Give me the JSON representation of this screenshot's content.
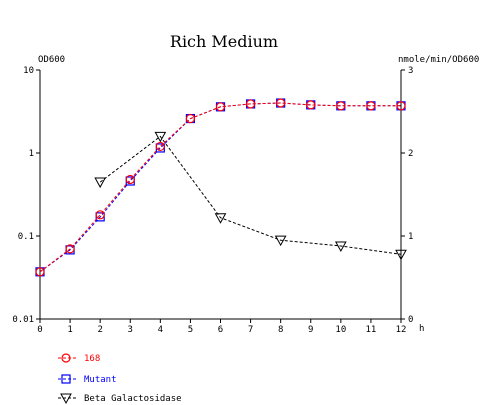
{
  "chart_data": {
    "type": "line",
    "title": "Rich Medium",
    "left_axis_label": "OD600",
    "right_axis_label": "nmole/min/OD600",
    "x_unit": "h",
    "x": [
      0,
      1,
      2,
      3,
      4,
      5,
      6,
      7,
      8,
      9,
      10,
      11,
      12
    ],
    "x_ticks": [
      "0",
      "1",
      "2",
      "3",
      "4",
      "5",
      "6",
      "7",
      "8",
      "9",
      "10",
      "11",
      "12"
    ],
    "xlim": [
      0,
      12
    ],
    "left_scale": "log",
    "left_ylim": [
      0.01,
      10
    ],
    "left_ticks": [
      "0.01",
      "0.1",
      "1",
      "10"
    ],
    "right_ylim": [
      0,
      3
    ],
    "right_ticks": [
      "0",
      "1",
      "2",
      "3"
    ],
    "series": [
      {
        "name": "168",
        "axis": "left",
        "color": "#ff0000",
        "marker": "circle",
        "x": [
          0,
          1,
          2,
          3,
          4,
          5,
          6,
          7,
          8,
          9,
          10,
          11,
          12
        ],
        "values": [
          0.037,
          0.07,
          0.18,
          0.48,
          1.2,
          2.6,
          3.6,
          3.9,
          4.0,
          3.8,
          3.7,
          3.7,
          3.7
        ]
      },
      {
        "name": "Mutant",
        "axis": "left",
        "color": "#0000ff",
        "marker": "square",
        "x": [
          0,
          1,
          2,
          3,
          4,
          5,
          6,
          7,
          8,
          9,
          10,
          11,
          12
        ],
        "values": [
          0.037,
          0.068,
          0.17,
          0.46,
          1.15,
          2.6,
          3.6,
          3.9,
          4.0,
          3.8,
          3.7,
          3.7,
          3.7
        ]
      },
      {
        "name": "Beta Galactosidase",
        "axis": "right",
        "color": "#000000",
        "marker": "triangle-down",
        "x": [
          2,
          4,
          6,
          8,
          10,
          12
        ],
        "values": [
          1.65,
          2.2,
          1.22,
          0.95,
          0.88,
          0.78
        ]
      }
    ]
  }
}
